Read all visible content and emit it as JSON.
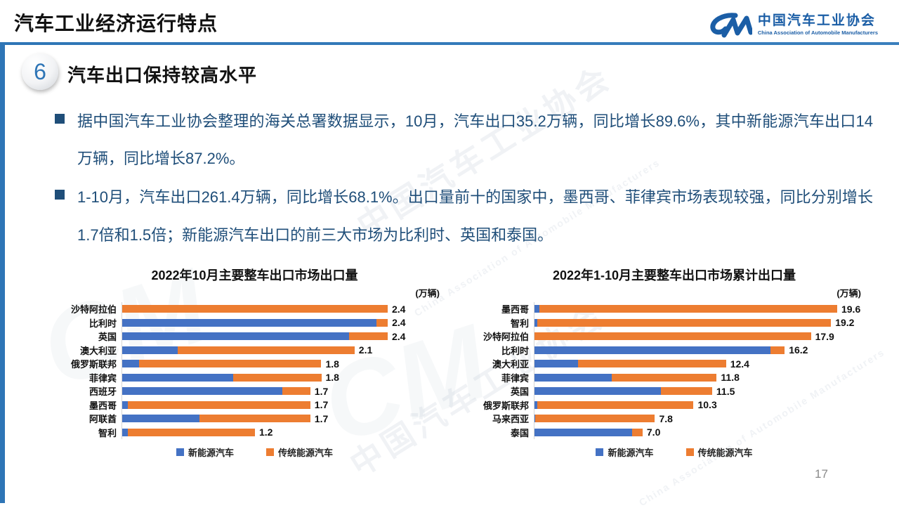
{
  "header": {
    "title": "汽车工业经济运行特点",
    "logo": {
      "mark": "CM",
      "name_cn": "中国汽车工业协会",
      "name_en": "China Association of Automobile Manufacturers"
    }
  },
  "section": {
    "number": "6",
    "title": "汽车出口保持较高水平"
  },
  "bullets": [
    "据中国汽车工业协会整理的海关总署数据显示，10月，汽车出口35.2万辆，同比增长89.6%，其中新能源汽车出口14万辆，同比增长87.2%。",
    "1-10月，汽车出口261.4万辆，同比增长68.1%。出口量前十的国家中，墨西哥、菲律宾市场表现较强，同比分别增长1.7倍和1.5倍；新能源汽车出口的前三大市场为比利时、英国和泰国。"
  ],
  "colors": {
    "nev_blue": "#4472C4",
    "ice_orange": "#ED7D31",
    "accent_blue": "#2E75B6",
    "dark_blue_text": "#1F4E79"
  },
  "chart_data": [
    {
      "type": "bar",
      "orientation": "horizontal",
      "stacked": true,
      "title": "2022年10月主要整车出口市场出口量",
      "unit": "(万辆)",
      "categories": [
        "沙特阿拉伯",
        "比利时",
        "英国",
        "澳大利亚",
        "俄罗斯联邦",
        "菲律宾",
        "西班牙",
        "墨西哥",
        "阿联酋",
        "智利"
      ],
      "series": [
        {
          "name": "新能源汽车",
          "values": [
            0.0,
            2.3,
            2.05,
            0.5,
            0.15,
            1.0,
            1.45,
            0.05,
            0.7,
            0.05
          ]
        },
        {
          "name": "传统能源汽车",
          "values": [
            2.4,
            0.1,
            0.35,
            1.6,
            1.65,
            0.8,
            0.25,
            1.65,
            1.0,
            1.15
          ]
        }
      ],
      "totals": [
        "2.4",
        "2.4",
        "2.4",
        "2.1",
        "1.8",
        "1.8",
        "1.7",
        "1.7",
        "1.7",
        "1.2"
      ],
      "xmax": 2.4,
      "legend": [
        "新能源汽车",
        "传统能源汽车"
      ],
      "grid": false,
      "legend_position": "bottom"
    },
    {
      "type": "bar",
      "orientation": "horizontal",
      "stacked": true,
      "title": "2022年1-10月主要整车出口市场累计出口量",
      "unit": "(万辆)",
      "categories": [
        "墨西哥",
        "智利",
        "沙特阿拉伯",
        "比利时",
        "澳大利亚",
        "菲律宾",
        "英国",
        "俄罗斯联邦",
        "马来西亚",
        "泰国"
      ],
      "series": [
        {
          "name": "新能源汽车",
          "values": [
            0.3,
            0.2,
            0.0,
            15.3,
            2.8,
            5.0,
            8.2,
            0.2,
            0.05,
            6.3
          ]
        },
        {
          "name": "传统能源汽车",
          "values": [
            19.3,
            19.0,
            17.9,
            0.9,
            9.6,
            6.8,
            3.3,
            10.1,
            7.75,
            0.7
          ]
        }
      ],
      "totals": [
        "19.6",
        "19.2",
        "17.9",
        "16.2",
        "12.4",
        "11.8",
        "11.5",
        "10.3",
        "7.8",
        "7.0"
      ],
      "xmax": 19.6,
      "legend": [
        "新能源汽车",
        "传统能源汽车"
      ],
      "grid": false,
      "legend_position": "bottom"
    }
  ],
  "watermark": {
    "cn": "中国汽车工业协会",
    "en": "China Association of Automobile Manufacturers",
    "mark": "CM"
  },
  "footer": {
    "page_number": "17"
  }
}
